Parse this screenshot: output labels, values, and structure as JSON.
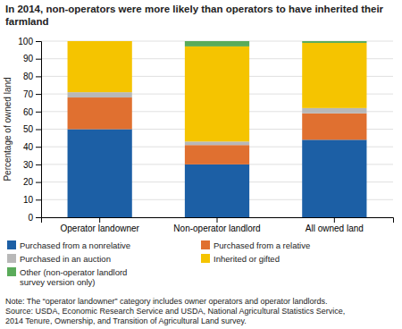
{
  "chart_data": {
    "type": "bar",
    "stacked": true,
    "title": "In 2014, non-operators were more likely than operators to have inherited their farmland",
    "ylabel": "Percentage of owned land",
    "categories": [
      "Operator landowner",
      "Non-operator landlord",
      "All owned land"
    ],
    "series": [
      {
        "name": "Purchased from a nonrelative",
        "color": "#1c5fa5",
        "values": [
          50,
          30,
          44
        ]
      },
      {
        "name": "Purchased from a relative",
        "color": "#e07030",
        "values": [
          18,
          11,
          15
        ]
      },
      {
        "name": "Purchased in an auction",
        "color": "#b8b8b8",
        "values": [
          3,
          2,
          3
        ]
      },
      {
        "name": "Inherited or gifted",
        "color": "#f5c400",
        "values": [
          29,
          54,
          37
        ]
      },
      {
        "name": "Other (non-operator landlord\nsurvey version only)",
        "color": "#5aab5a",
        "values": [
          0,
          3,
          1
        ]
      }
    ],
    "ylim": [
      0,
      100
    ],
    "yticks": [
      0,
      10,
      20,
      30,
      40,
      50,
      60,
      70,
      80,
      90,
      100
    ],
    "grid": true,
    "legend": "bottom",
    "annotations": [
      "Note: The “operator landowner” category includes owner operators and operator landlords.\nSource: USDA, Economic Research Service and USDA, National Agricultural Statistics Service,\n2014 Tenure, Ownership, and Transition of Agricultural Land survey."
    ]
  }
}
